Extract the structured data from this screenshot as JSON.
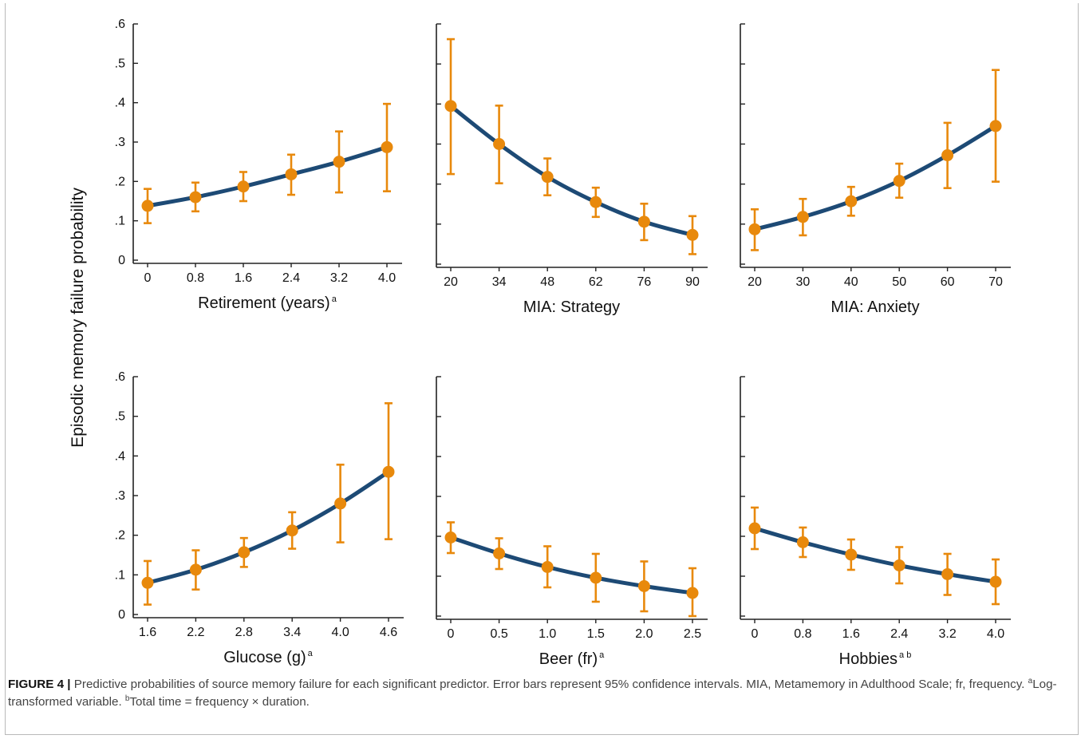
{
  "colors": {
    "line": "#1d4a75",
    "marker": "#e8890c",
    "axis": "#222222",
    "caption_label": "#111111",
    "caption_text": "#444444"
  },
  "figure": {
    "y_axis_label": "Episodic memory failure probability",
    "caption_label": "FIGURE 4 |",
    "caption_text": "Predictive probabilities of source memory failure for each significant predictor. Error bars represent 95% confidence intervals. MIA, Metamemory in Adulthood Scale; fr, frequency.",
    "footnote_a_mark": "a",
    "footnote_a_text": "Log-transformed variable.",
    "footnote_b_mark": "b",
    "footnote_b_text": "Total time = frequency × duration."
  },
  "chart_data": [
    {
      "type": "line",
      "xlabel": "Retirement (years)",
      "xlabel_sup": "a",
      "categories": [
        "0",
        "0.8",
        "1.6",
        "2.4",
        "3.2",
        "4.0"
      ],
      "values": [
        0.138,
        0.16,
        0.187,
        0.218,
        0.25,
        0.287
      ],
      "ci_low": [
        0.094,
        0.124,
        0.15,
        0.166,
        0.172,
        0.175
      ],
      "ci_high": [
        0.181,
        0.197,
        0.224,
        0.268,
        0.327,
        0.397
      ],
      "yticks": [
        "0",
        ".1",
        ".2",
        ".3",
        ".4",
        ".5",
        ".6"
      ],
      "ylim": [
        0,
        0.6
      ],
      "show_ytick_labels": true
    },
    {
      "type": "line",
      "xlabel": "MIA: Strategy",
      "xlabel_sup": "",
      "categories": [
        "20",
        "34",
        "48",
        "62",
        "76",
        "90"
      ],
      "values": [
        0.395,
        0.3,
        0.218,
        0.155,
        0.106,
        0.073
      ],
      "ci_low": [
        0.225,
        0.202,
        0.172,
        0.118,
        0.06,
        0.025
      ],
      "ci_high": [
        0.562,
        0.396,
        0.264,
        0.191,
        0.151,
        0.12
      ],
      "yticks": [
        "0",
        ".1",
        ".2",
        ".3",
        ".4",
        ".5",
        ".6"
      ],
      "ylim": [
        0,
        0.6
      ],
      "show_ytick_labels": false
    },
    {
      "type": "line",
      "xlabel": "MIA: Anxiety",
      "xlabel_sup": "",
      "categories": [
        "20",
        "30",
        "40",
        "50",
        "60",
        "70"
      ],
      "values": [
        0.087,
        0.118,
        0.157,
        0.208,
        0.272,
        0.345
      ],
      "ci_low": [
        0.035,
        0.072,
        0.121,
        0.166,
        0.19,
        0.206
      ],
      "ci_high": [
        0.137,
        0.163,
        0.193,
        0.251,
        0.353,
        0.485
      ],
      "yticks": [
        "0",
        ".1",
        ".2",
        ".3",
        ".4",
        ".5",
        ".6"
      ],
      "ylim": [
        0,
        0.6
      ],
      "show_ytick_labels": false
    },
    {
      "type": "line",
      "xlabel": "Glucose (g)",
      "xlabel_sup": "a",
      "categories": [
        "1.6",
        "2.2",
        "2.8",
        "3.4",
        "4.0",
        "4.6"
      ],
      "values": [
        0.08,
        0.113,
        0.157,
        0.212,
        0.28,
        0.36
      ],
      "ci_low": [
        0.025,
        0.063,
        0.12,
        0.166,
        0.182,
        0.19
      ],
      "ci_high": [
        0.135,
        0.162,
        0.193,
        0.258,
        0.378,
        0.533
      ],
      "yticks": [
        "0",
        ".1",
        ".2",
        ".3",
        ".4",
        ".5",
        ".6"
      ],
      "ylim": [
        0,
        0.6
      ],
      "show_ytick_labels": true
    },
    {
      "type": "line",
      "xlabel": "Beer (fr)",
      "xlabel_sup": "a",
      "categories": [
        "0",
        "0.5",
        "1.0",
        "1.5",
        "2.0",
        "2.5"
      ],
      "values": [
        0.197,
        0.157,
        0.123,
        0.096,
        0.075,
        0.058
      ],
      "ci_low": [
        0.158,
        0.118,
        0.072,
        0.036,
        0.012,
        0.0
      ],
      "ci_high": [
        0.235,
        0.195,
        0.175,
        0.156,
        0.137,
        0.12
      ],
      "yticks": [
        "0",
        ".1",
        ".2",
        ".3",
        ".4",
        ".5",
        ".6"
      ],
      "ylim": [
        0,
        0.6
      ],
      "show_ytick_labels": false
    },
    {
      "type": "line",
      "xlabel": "Hobbies",
      "xlabel_sup": "a b",
      "categories": [
        "0",
        "0.8",
        "1.6",
        "2.4",
        "3.2",
        "4.0"
      ],
      "values": [
        0.22,
        0.185,
        0.154,
        0.127,
        0.105,
        0.086
      ],
      "ci_low": [
        0.168,
        0.148,
        0.116,
        0.082,
        0.053,
        0.03
      ],
      "ci_high": [
        0.272,
        0.222,
        0.192,
        0.173,
        0.156,
        0.142
      ],
      "yticks": [
        "0",
        ".1",
        ".2",
        ".3",
        ".4",
        ".5",
        ".6"
      ],
      "ylim": [
        0,
        0.6
      ],
      "show_ytick_labels": false
    }
  ]
}
